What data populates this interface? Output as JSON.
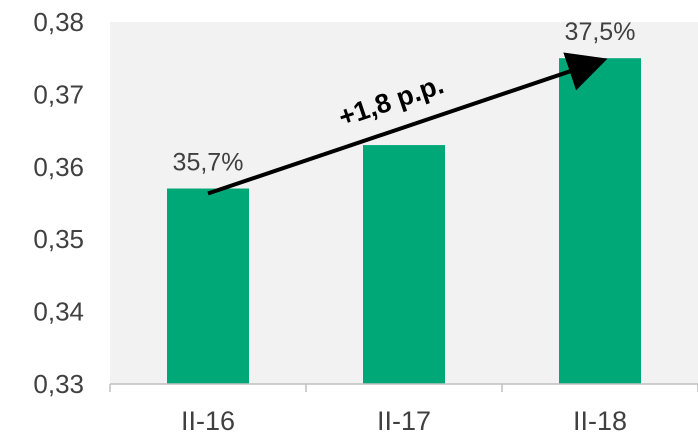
{
  "chart_data": {
    "type": "bar",
    "categories": [
      "II-16",
      "II-17",
      "II-18"
    ],
    "values": [
      0.357,
      0.363,
      0.375
    ],
    "data_labels": [
      "35,7%",
      "",
      "37,5%"
    ],
    "ylim": [
      0.33,
      0.38
    ],
    "yticks": [
      0.33,
      0.34,
      0.35,
      0.36,
      0.37,
      0.38
    ],
    "ytick_labels": [
      "0,33",
      "0,34",
      "0,35",
      "0,36",
      "0,37",
      "0,38"
    ],
    "grid": false,
    "plot_background": "#f2f2f2",
    "bar_color": "#00a878",
    "annotation": {
      "text": "+1,8 p.p.",
      "from_category": "II-16",
      "to_category": "II-18",
      "color": "#000000"
    }
  }
}
